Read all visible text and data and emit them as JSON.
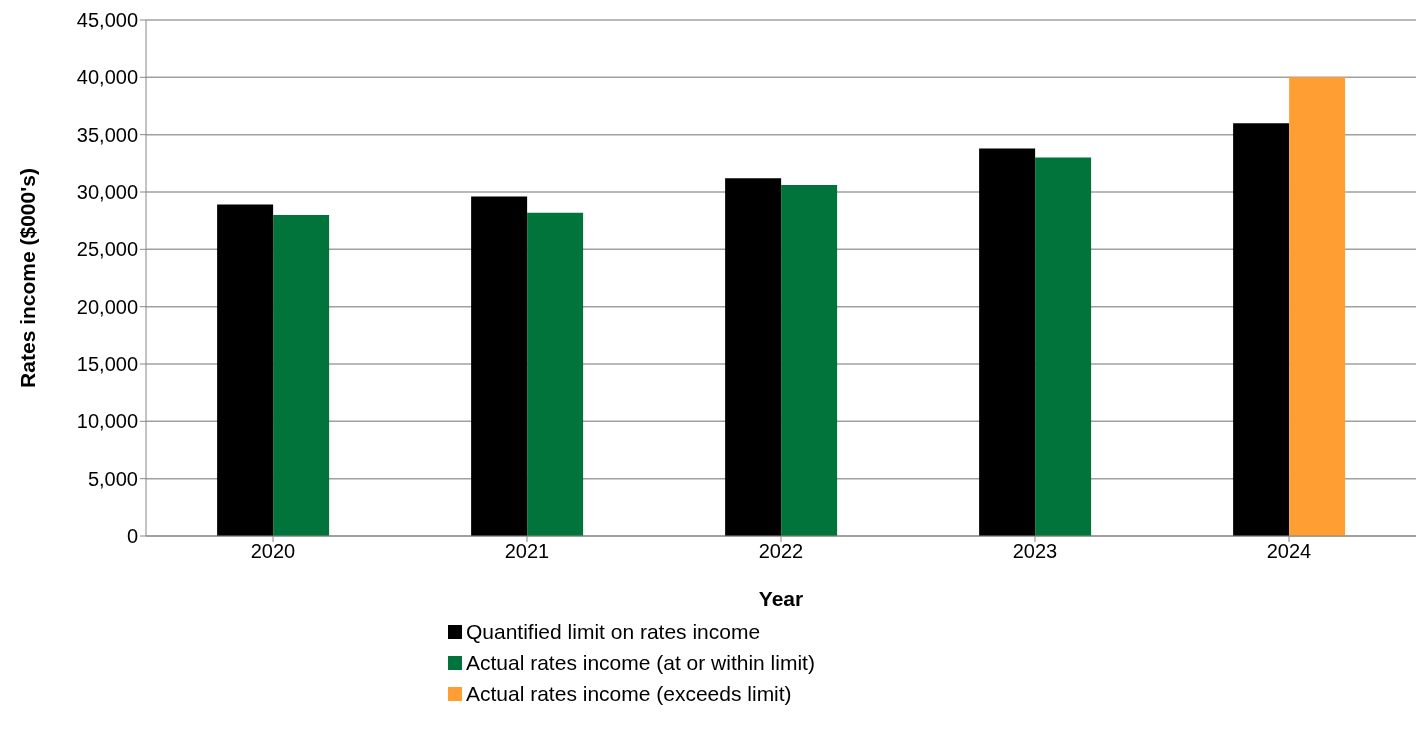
{
  "chart_data": {
    "type": "bar",
    "xlabel": "Year",
    "ylabel": "Rates income  ($000's)",
    "categories": [
      "2020",
      "2021",
      "2022",
      "2023",
      "2024"
    ],
    "series": [
      {
        "name": "Quantified limit on rates income",
        "color": "#000000",
        "values": [
          28900,
          29600,
          31200,
          33800,
          36000
        ]
      },
      {
        "name": "Actual rates income (at or within limit)",
        "color": "#00743a",
        "values": [
          28000,
          28200,
          30600,
          33000,
          null
        ]
      },
      {
        "name": "Actual rates income (exceeds limit)",
        "color": "#ff9e33",
        "values": [
          null,
          null,
          null,
          null,
          40000
        ]
      }
    ],
    "ylim": [
      0,
      45000
    ],
    "yticks": [
      0,
      {
        "value": 5000,
        "label": "5,000"
      },
      {
        "value": 10000,
        "label": "10,000"
      },
      {
        "value": 15000,
        "label": "15,000"
      },
      {
        "value": 20000,
        "label": "20,000"
      },
      {
        "value": 25000,
        "label": "25,000"
      },
      {
        "value": 30000,
        "label": "30,000"
      },
      {
        "value": 35000,
        "label": "35,000"
      },
      {
        "value": 40000,
        "label": "40,000"
      },
      {
        "value": 45000,
        "label": "45,000"
      }
    ],
    "grid": "y",
    "legend": "bottom"
  }
}
